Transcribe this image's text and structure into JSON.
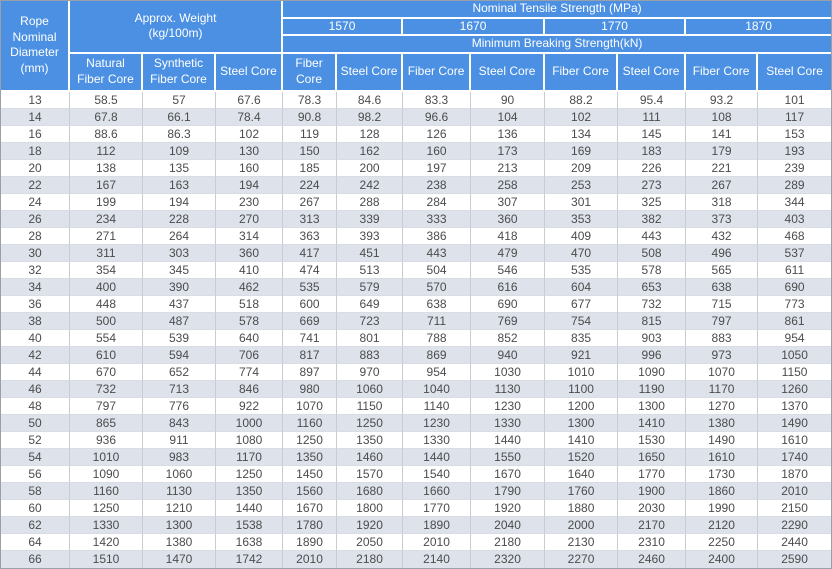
{
  "colors": {
    "header_bg": "#4b90e2",
    "header_text": "#ffffff",
    "row_alt": "#dde2eb",
    "body_text": "#4c4c4c",
    "outer_border": "#9aa0a8"
  },
  "table": {
    "header": {
      "diameter": "Rope\nNominal\nDiameter\n(mm)",
      "approx_weight": "Approx. Weight\n(kg/100m)",
      "tensile_strength": "Nominal Tensile Strength  (MPa)",
      "grades": [
        "1570",
        "1670",
        "1770",
        "1870"
      ],
      "breaking_strength": "Minimum Breaking Strength(kN)",
      "weight_cores": [
        "Natural Fiber Core",
        "Synthetic Fiber Core",
        "Steel Core"
      ],
      "strength_cores": [
        "Fiber Core",
        "Steel Core",
        "Fiber Core",
        "Steel Core",
        "Fiber Core",
        "Steel Core",
        "Fiber Core",
        "Steel Core"
      ]
    },
    "rows": [
      [
        13,
        58.5,
        57,
        67.6,
        78.3,
        84.6,
        83.3,
        90,
        88.2,
        95.4,
        93.2,
        101
      ],
      [
        14,
        67.8,
        66.1,
        78.4,
        90.8,
        98.2,
        96.6,
        104,
        102,
        111,
        108,
        117
      ],
      [
        16,
        88.6,
        86.3,
        102,
        119,
        128,
        126,
        136,
        134,
        145,
        141,
        153
      ],
      [
        18,
        112,
        109,
        130,
        150,
        162,
        160,
        173,
        169,
        183,
        179,
        193
      ],
      [
        20,
        138,
        135,
        160,
        185,
        200,
        197,
        213,
        209,
        226,
        221,
        239
      ],
      [
        22,
        167,
        163,
        194,
        224,
        242,
        238,
        258,
        253,
        273,
        267,
        289
      ],
      [
        24,
        199,
        194,
        230,
        267,
        288,
        284,
        307,
        301,
        325,
        318,
        344
      ],
      [
        26,
        234,
        228,
        270,
        313,
        339,
        333,
        360,
        353,
        382,
        373,
        403
      ],
      [
        28,
        271,
        264,
        314,
        363,
        393,
        386,
        418,
        409,
        443,
        432,
        468
      ],
      [
        30,
        311,
        303,
        360,
        417,
        451,
        443,
        479,
        470,
        508,
        496,
        537
      ],
      [
        32,
        354,
        345,
        410,
        474,
        513,
        504,
        546,
        535,
        578,
        565,
        611
      ],
      [
        34,
        400,
        390,
        462,
        535,
        579,
        570,
        616,
        604,
        653,
        638,
        690
      ],
      [
        36,
        448,
        437,
        518,
        600,
        649,
        638,
        690,
        677,
        732,
        715,
        773
      ],
      [
        38,
        500,
        487,
        578,
        669,
        723,
        711,
        769,
        754,
        815,
        797,
        861
      ],
      [
        40,
        554,
        539,
        640,
        741,
        801,
        788,
        852,
        835,
        903,
        883,
        954
      ],
      [
        42,
        610,
        594,
        706,
        817,
        883,
        869,
        940,
        921,
        996,
        973,
        1050
      ],
      [
        44,
        670,
        652,
        774,
        897,
        970,
        954,
        1030,
        1010,
        1090,
        1070,
        1150
      ],
      [
        46,
        732,
        713,
        846,
        980,
        1060,
        1040,
        1130,
        1100,
        1190,
        1170,
        1260
      ],
      [
        48,
        797,
        776,
        922,
        1070,
        1150,
        1140,
        1230,
        1200,
        1300,
        1270,
        1370
      ],
      [
        50,
        865,
        843,
        1000,
        1160,
        1250,
        1230,
        1330,
        1300,
        1410,
        1380,
        1490
      ],
      [
        52,
        936,
        911,
        1080,
        1250,
        1350,
        1330,
        1440,
        1410,
        1530,
        1490,
        1610
      ],
      [
        54,
        1010,
        983,
        1170,
        1350,
        1460,
        1440,
        1550,
        1520,
        1650,
        1610,
        1740
      ],
      [
        56,
        1090,
        1060,
        1250,
        1450,
        1570,
        1540,
        1670,
        1640,
        1770,
        1730,
        1870
      ],
      [
        58,
        1160,
        1130,
        1350,
        1560,
        1680,
        1660,
        1790,
        1760,
        1900,
        1860,
        2010
      ],
      [
        60,
        1250,
        1210,
        1440,
        1670,
        1800,
        1770,
        1920,
        1880,
        2030,
        1990,
        2150
      ],
      [
        62,
        1330,
        1300,
        1538,
        1780,
        1920,
        1890,
        2040,
        2000,
        2170,
        2120,
        2290
      ],
      [
        64,
        1420,
        1380,
        1638,
        1890,
        2050,
        2010,
        2180,
        2130,
        2310,
        2250,
        2440
      ],
      [
        66,
        1510,
        1470,
        1742,
        2010,
        2180,
        2140,
        2320,
        2270,
        2460,
        2400,
        2590
      ]
    ]
  }
}
